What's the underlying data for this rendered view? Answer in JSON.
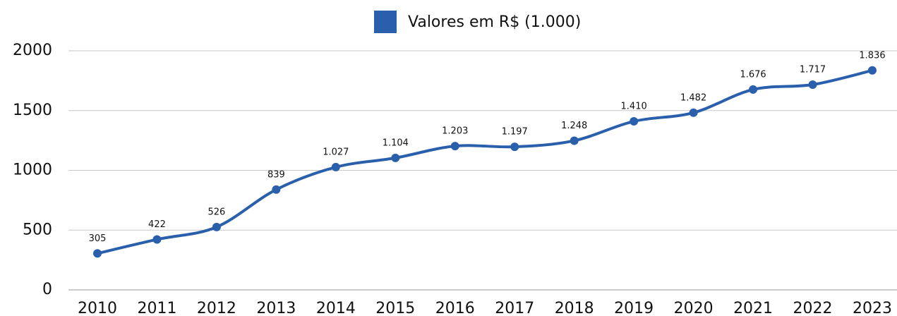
{
  "chart_data": {
    "type": "line",
    "legend": "top",
    "grid": true,
    "categories": [
      "2010",
      "2011",
      "2012",
      "2013",
      "2014",
      "2015",
      "2016",
      "2017",
      "2018",
      "2019",
      "2020",
      "2021",
      "2022",
      "2023"
    ],
    "series": [
      {
        "name": "Valores em R$ (1.000)",
        "color": "#2a5fab",
        "values": [
          305,
          422,
          526,
          839,
          1027,
          1104,
          1203,
          1197,
          1248,
          1410,
          1482,
          1676,
          1717,
          1836
        ],
        "value_labels": [
          "305",
          "422",
          "526",
          "839",
          "1.027",
          "1.104",
          "1.203",
          "1.197",
          "1.248",
          "1.410",
          "1.482",
          "1.676",
          "1.717",
          "1.836"
        ]
      }
    ],
    "ylim": [
      0,
      2000
    ],
    "yticks": [
      0,
      500,
      1000,
      1500,
      2000
    ]
  }
}
